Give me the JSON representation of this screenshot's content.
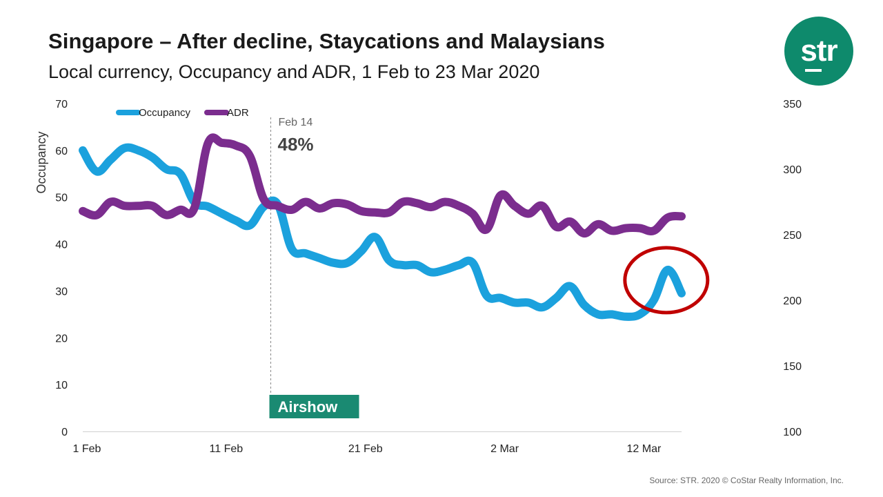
{
  "header": {
    "title": "Singapore – After decline, Staycations and Malaysians",
    "subtitle": "Local currency, Occupancy and ADR, 1 Feb to 23 Mar 2020"
  },
  "logo": {
    "text": "str",
    "color": "#0e8a6c"
  },
  "footer": {
    "source": "Source: STR. 2020 © CoStar Realty Information, Inc."
  },
  "chart_data": {
    "type": "line",
    "xlabel": "",
    "ylabel": "Occupancy",
    "ylabel_right": "",
    "x_tick_labels": [
      "1 Feb",
      "11 Feb",
      "21 Feb",
      "2 Mar",
      "12 Mar"
    ],
    "x_tick_index": [
      0,
      10,
      20,
      30,
      40
    ],
    "ylim": [
      0,
      70
    ],
    "y_ticks": [
      0,
      10,
      20,
      30,
      40,
      50,
      60,
      70
    ],
    "ylim_right": [
      100,
      350
    ],
    "y_ticks_right": [
      100,
      150,
      200,
      250,
      300,
      350
    ],
    "legend": {
      "placement": "top-left"
    },
    "grid": false,
    "series": [
      {
        "name": "Occupancy",
        "axis": "left",
        "color": "#1ba1dd",
        "values": [
          60,
          55.5,
          58,
          60.5,
          60,
          58.5,
          56,
          55,
          49,
          48,
          46.5,
          45,
          44,
          48,
          48.5,
          39,
          38,
          37,
          36,
          36,
          38.5,
          41.5,
          36.5,
          35.5,
          35.5,
          34,
          34.5,
          35.5,
          36,
          29,
          28.5,
          27.5,
          27.5,
          26.5,
          28.5,
          31,
          27,
          25,
          25,
          24.5,
          25,
          28,
          34.5,
          29.5
        ]
      },
      {
        "name": "ADR",
        "axis": "right",
        "color": "#7b2d8e",
        "values": [
          268,
          265,
          275,
          272,
          272,
          272,
          265,
          269,
          270,
          320,
          320,
          318,
          310,
          277,
          272,
          269,
          275,
          270,
          274,
          273,
          268,
          267,
          267,
          275,
          274,
          271,
          275,
          272,
          266,
          254,
          280,
          272,
          266,
          272,
          256,
          260,
          251,
          258,
          253,
          255,
          255,
          253,
          263,
          264
        ]
      }
    ],
    "annotations": [
      {
        "date": "Feb 14",
        "value": "48%",
        "index": 13.5
      },
      {
        "label": "Airshow",
        "color": "#1a8a72"
      }
    ],
    "highlight_circle": {
      "index": 42,
      "value": 32,
      "color": "#c00000"
    }
  }
}
